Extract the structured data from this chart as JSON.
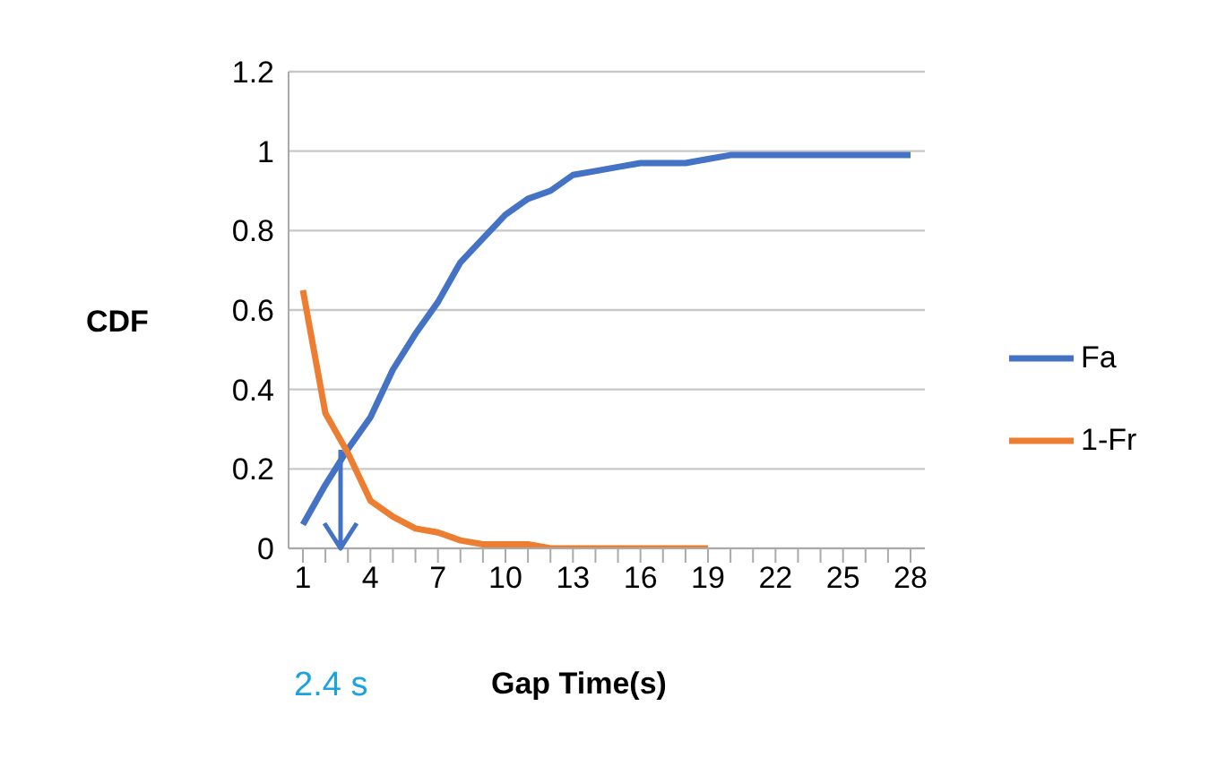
{
  "chart_data": {
    "type": "line",
    "xlabel": "Gap Time(s)",
    "ylabel": "CDF",
    "categories": [
      "1",
      null,
      null,
      "4",
      null,
      null,
      "7",
      null,
      null,
      "10",
      null,
      null,
      "13",
      null,
      null,
      "16",
      null,
      null,
      "19",
      null,
      null,
      "22",
      null,
      null,
      "25",
      null,
      null,
      "28"
    ],
    "series": [
      {
        "name": "Fa",
        "color": "#4472c4",
        "values": [
          0.06,
          0.16,
          0.25,
          0.33,
          0.45,
          0.54,
          0.62,
          0.72,
          0.78,
          0.84,
          0.88,
          0.9,
          0.94,
          0.95,
          0.96,
          0.97,
          0.97,
          0.97,
          0.98,
          0.99,
          0.99,
          0.99,
          0.99,
          0.99,
          0.99,
          0.99,
          0.99,
          0.99
        ]
      },
      {
        "name": "1-Fr",
        "color": "#ed7d31",
        "values": [
          0.65,
          0.34,
          0.24,
          0.12,
          0.08,
          0.05,
          0.04,
          0.02,
          0.01,
          0.01,
          0.01,
          0,
          0,
          0,
          0,
          0,
          0,
          0,
          0,
          null,
          null,
          null,
          null,
          null,
          null,
          null,
          null,
          null
        ]
      }
    ],
    "ylim": [
      0,
      1.2
    ],
    "yticks": [
      0,
      0.2,
      0.4,
      0.6,
      0.8,
      1,
      1.2
    ],
    "grid": "y",
    "legend": "right",
    "marker": "none",
    "line_style": "solid",
    "annotations": [
      "2.4 s"
    ]
  }
}
